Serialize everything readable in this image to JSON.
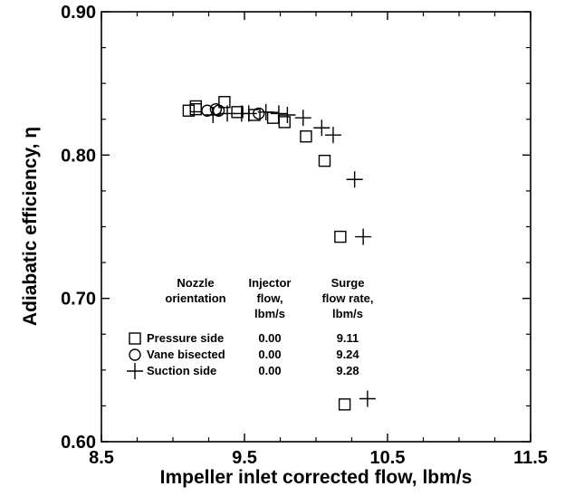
{
  "chart_data": {
    "type": "scatter",
    "xlabel": "Impeller inlet corrected flow, lbm/s",
    "ylabel": "Adiabatic efficiency, η",
    "xlim": [
      8.5,
      11.5
    ],
    "ylim": [
      0.6,
      0.9
    ],
    "x_ticks": [
      "8.5",
      "9.5",
      "10.5",
      "11.5"
    ],
    "y_ticks": [
      "0.60",
      "0.70",
      "0.80",
      "0.90"
    ],
    "grid": false,
    "legend": {
      "placement": "lower-left",
      "headers": [
        [
          "Nozzle",
          "orientation"
        ],
        [
          "Injector",
          "flow,",
          "lbm/s"
        ],
        [
          "Surge",
          "flow rate,",
          "lbm/s"
        ]
      ],
      "rows": [
        {
          "marker": "square",
          "label": "Pressure side",
          "injector_flow": "0.00",
          "surge_flow_rate": "9.11"
        },
        {
          "marker": "circle",
          "label": "Vane bisected",
          "injector_flow": "0.00",
          "surge_flow_rate": "9.24"
        },
        {
          "marker": "plus",
          "label": "Suction side",
          "injector_flow": "0.00",
          "surge_flow_rate": "9.28"
        }
      ]
    },
    "series": [
      {
        "marker": "square",
        "points": [
          [
            9.11,
            0.831
          ],
          [
            9.16,
            0.832
          ],
          [
            9.16,
            0.834
          ],
          [
            9.36,
            0.837
          ],
          [
            9.45,
            0.83
          ],
          [
            9.57,
            0.828
          ],
          [
            9.7,
            0.826
          ],
          [
            9.78,
            0.823
          ],
          [
            9.93,
            0.813
          ],
          [
            10.06,
            0.796
          ],
          [
            10.17,
            0.743
          ],
          [
            10.2,
            0.626
          ]
        ]
      },
      {
        "marker": "circle",
        "points": [
          [
            9.24,
            0.831
          ],
          [
            9.3,
            0.832
          ],
          [
            9.32,
            0.831
          ],
          [
            9.6,
            0.829
          ]
        ]
      },
      {
        "marker": "plus",
        "points": [
          [
            9.28,
            0.828
          ],
          [
            9.38,
            0.829
          ],
          [
            9.48,
            0.829
          ],
          [
            9.53,
            0.829
          ],
          [
            9.65,
            0.83
          ],
          [
            9.74,
            0.829
          ],
          [
            9.8,
            0.828
          ],
          [
            9.91,
            0.826
          ],
          [
            10.04,
            0.819
          ],
          [
            10.12,
            0.814
          ],
          [
            10.27,
            0.783
          ],
          [
            10.33,
            0.743
          ],
          [
            10.36,
            0.63
          ]
        ]
      }
    ]
  }
}
